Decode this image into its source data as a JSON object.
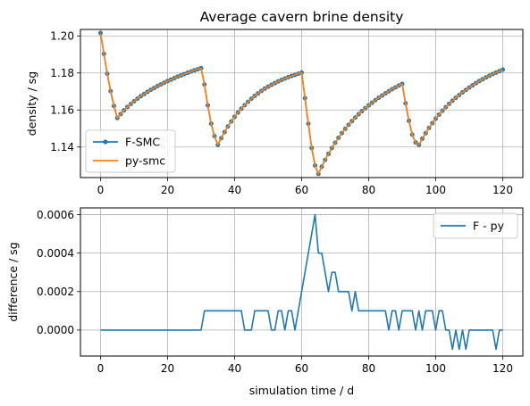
{
  "colors": {
    "series1": "#1f77b4",
    "series2": "#ff7f0e",
    "grid": "#b0b0b0",
    "axis": "#000000"
  },
  "chart_data": [
    {
      "type": "line",
      "title": "Average cavern brine density",
      "xlabel": "",
      "ylabel": "density / sg",
      "xlim": [
        -6,
        126
      ],
      "ylim": [
        1.1235,
        1.2035
      ],
      "xticks": [
        0,
        20,
        40,
        60,
        80,
        100,
        120
      ],
      "yticks": [
        1.14,
        1.16,
        1.18,
        1.2
      ],
      "yticklabels": [
        "1.14",
        "1.16",
        "1.18",
        "1.20"
      ],
      "grid": true,
      "legend": {
        "position": "lower-left",
        "entries": [
          "F-SMC",
          "py-smc"
        ]
      },
      "series": [
        {
          "name": "F-SMC",
          "marker": "circle",
          "x": [
            0,
            1,
            2,
            3,
            4,
            5,
            6,
            7,
            8,
            9,
            10,
            11,
            12,
            13,
            14,
            15,
            16,
            17,
            18,
            19,
            20,
            21,
            22,
            23,
            24,
            25,
            26,
            27,
            28,
            29,
            30,
            31,
            32,
            33,
            34,
            35,
            36,
            37,
            38,
            39,
            40,
            41,
            42,
            43,
            44,
            45,
            46,
            47,
            48,
            49,
            50,
            51,
            52,
            53,
            54,
            55,
            56,
            57,
            58,
            59,
            60,
            61,
            62,
            63,
            64,
            65,
            66,
            67,
            68,
            69,
            70,
            71,
            72,
            73,
            74,
            75,
            76,
            77,
            78,
            79,
            80,
            81,
            82,
            83,
            84,
            85,
            86,
            87,
            88,
            89,
            90,
            91,
            92,
            93,
            94,
            95,
            96,
            97,
            98,
            99,
            100,
            101,
            102,
            103,
            104,
            105,
            106,
            107,
            108,
            109,
            110,
            111,
            112,
            113,
            114,
            115,
            116,
            117,
            118,
            119,
            120
          ],
          "y": [
            1.2015,
            1.1903,
            1.1796,
            1.1702,
            1.1622,
            1.1557,
            1.1578,
            1.1598,
            1.1616,
            1.1632,
            1.1647,
            1.1661,
            1.1674,
            1.1686,
            1.1698,
            1.1709,
            1.1719,
            1.1729,
            1.1738,
            1.1747,
            1.1756,
            1.1764,
            1.1772,
            1.178,
            1.1787,
            1.1794,
            1.1801,
            1.1808,
            1.1814,
            1.182,
            1.1826,
            1.1738,
            1.1625,
            1.1526,
            1.1459,
            1.1412,
            1.1448,
            1.1481,
            1.1511,
            1.1538,
            1.1563,
            1.1586,
            1.1607,
            1.1626,
            1.1644,
            1.1661,
            1.1676,
            1.169,
            1.1703,
            1.1715,
            1.1726,
            1.1736,
            1.1745,
            1.1754,
            1.1762,
            1.177,
            1.1777,
            1.1784,
            1.179,
            1.1796,
            1.1802,
            1.1664,
            1.1526,
            1.1395,
            1.13,
            1.1255,
            1.1294,
            1.133,
            1.1363,
            1.1394,
            1.1423,
            1.145,
            1.1475,
            1.1498,
            1.152,
            1.154,
            1.1559,
            1.1577,
            1.1594,
            1.161,
            1.1625,
            1.1639,
            1.1653,
            1.1666,
            1.1678,
            1.169,
            1.1701,
            1.1712,
            1.1722,
            1.1732,
            1.1741,
            1.1636,
            1.1542,
            1.1467,
            1.1425,
            1.1412,
            1.1445,
            1.1475,
            1.1503,
            1.1529,
            1.1553,
            1.1575,
            1.1596,
            1.1615,
            1.1633,
            1.165,
            1.1666,
            1.1681,
            1.1695,
            1.1708,
            1.1721,
            1.1733,
            1.1745,
            1.1756,
            1.1766,
            1.1776,
            1.1785,
            1.1794,
            1.1802,
            1.181,
            1.1818
          ]
        },
        {
          "name": "py-smc",
          "marker": "none",
          "same_x_as": "F-SMC"
        }
      ]
    },
    {
      "type": "line",
      "title": "",
      "xlabel": "simulation time / d",
      "ylabel": "difference / sg",
      "xlim": [
        -6,
        126
      ],
      "ylim": [
        -0.000135,
        0.000635
      ],
      "xticks": [
        0,
        20,
        40,
        60,
        80,
        100,
        120
      ],
      "xticklabels": [
        "0",
        "20",
        "40",
        "60",
        "80",
        "100",
        "120"
      ],
      "yticks": [
        0,
        0.0002,
        0.0004,
        0.0006
      ],
      "yticklabels": [
        "0.0000",
        "0.0002",
        "0.0004",
        "0.0006"
      ],
      "grid": true,
      "legend": {
        "position": "upper-right",
        "entries": [
          "F - py"
        ]
      },
      "series": [
        {
          "name": "F - py",
          "x": [
            0,
            1,
            2,
            3,
            4,
            5,
            6,
            7,
            8,
            9,
            10,
            11,
            12,
            13,
            14,
            15,
            16,
            17,
            18,
            19,
            20,
            21,
            22,
            23,
            24,
            25,
            26,
            27,
            28,
            29,
            30,
            31,
            32,
            33,
            34,
            35,
            36,
            37,
            38,
            39,
            40,
            41,
            42,
            43,
            44,
            45,
            46,
            47,
            48,
            49,
            50,
            51,
            52,
            53,
            54,
            55,
            56,
            57,
            58,
            59,
            60,
            61,
            62,
            63,
            64,
            65,
            66,
            67,
            68,
            69,
            70,
            71,
            72,
            73,
            74,
            75,
            76,
            77,
            78,
            79,
            80,
            81,
            82,
            83,
            84,
            85,
            86,
            87,
            88,
            89,
            90,
            91,
            92,
            93,
            94,
            95,
            96,
            97,
            98,
            99,
            100,
            101,
            102,
            103,
            104,
            105,
            106,
            107,
            108,
            109,
            110,
            111,
            112,
            113,
            114,
            115,
            116,
            117,
            118,
            119,
            120
          ],
          "y": [
            0,
            0,
            0,
            0,
            0,
            0,
            0,
            0,
            0,
            0,
            0,
            0,
            0,
            0,
            0,
            0,
            0,
            0,
            0,
            0,
            0,
            0,
            0,
            0,
            0,
            0,
            0,
            0,
            0,
            0,
            0,
            0.0001,
            0.0001,
            0.0001,
            0.0001,
            0.0001,
            0.0001,
            0.0001,
            0.0001,
            0.0001,
            0.0001,
            0.0001,
            0.0001,
            0,
            0,
            0,
            0.0001,
            0.0001,
            0.0001,
            0.0001,
            0.0001,
            0,
            0,
            0.0001,
            0.0001,
            0,
            0.0001,
            0.0001,
            0,
            0.0001,
            0.0002,
            0.0003,
            0.0004,
            0.0005,
            0.0006,
            0.0004,
            0.0004,
            0.0003,
            0.0002,
            0.0003,
            0.0003,
            0.0002,
            0.0002,
            0.0002,
            0.0002,
            0.0001,
            0.0002,
            0.0001,
            0.0001,
            0.0001,
            0.0001,
            0.0001,
            0.0001,
            0.0001,
            0.0001,
            0.0001,
            0,
            0.0001,
            0.0001,
            0,
            0.0001,
            0.0001,
            0.0001,
            0.0001,
            0,
            0.0001,
            0,
            0.0001,
            0.0001,
            0.0001,
            0,
            0.0001,
            0.0001,
            0,
            0,
            -0.0001,
            0,
            -0.0001,
            0,
            -0.0001,
            0,
            0,
            0,
            0,
            0,
            0,
            0,
            0,
            -0.0001,
            0,
            0
          ]
        }
      ]
    }
  ]
}
